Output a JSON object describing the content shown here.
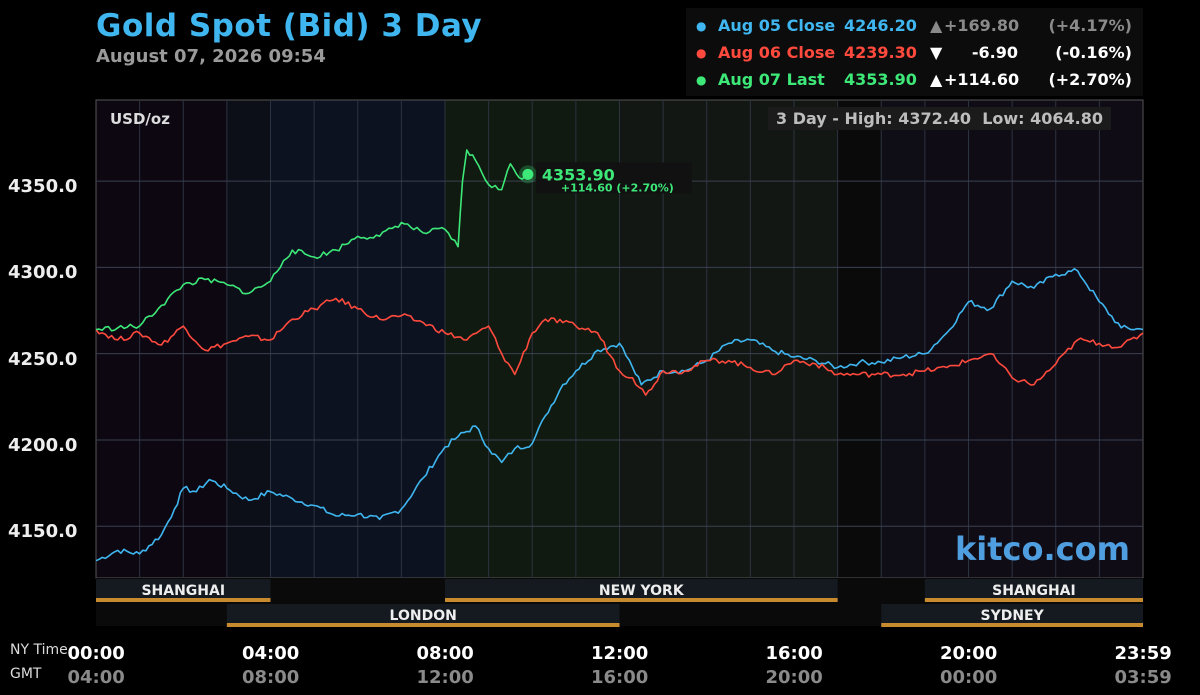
{
  "title": "Gold Spot (Bid) 3 Day",
  "subtitle": "August 07, 2026 09:54",
  "legend": [
    {
      "label": "Aug 05 Close",
      "value": "4246.20",
      "arrow": "▲",
      "change": "+169.80",
      "pct": "(+4.17%)",
      "color": "#3fb6f0",
      "chg_color": "#8a8a8a"
    },
    {
      "label": "Aug 06 Close",
      "value": "4239.30",
      "arrow": "▼",
      "change": "-6.90",
      "pct": "(-0.16%)",
      "color": "#ff4a3d",
      "chg_color": "#ffffff"
    },
    {
      "label": "Aug 07 Last",
      "value": "4353.90",
      "arrow": "▲",
      "change": "+114.60",
      "pct": "(+2.70%)",
      "color": "#3de879",
      "chg_color": "#ffffff"
    }
  ],
  "unit_label": "USD/oz",
  "hilo_text": "3 Day - High: 4372.40  Low: 4064.80",
  "watermark": "kitco.com",
  "last_marker": {
    "value": "4353.90",
    "change": "+114.60 (+2.70%)"
  },
  "tz_labels": {
    "ny": "NY Time",
    "gmt": "GMT"
  },
  "sessions": {
    "top": [
      {
        "name": "SHANGHAI",
        "start": 0,
        "end": 4
      },
      {
        "name": "NEW YORK",
        "start": 8,
        "end": 17
      },
      {
        "name": "SHANGHAI",
        "start": 19,
        "end": 24
      }
    ],
    "bottom": [
      {
        "name": "LONDON",
        "start": 3,
        "end": 12
      },
      {
        "name": "SYDNEY",
        "start": 18,
        "end": 24
      }
    ]
  },
  "colors": {
    "aug05": "#3fb6f0",
    "aug06": "#ff4a3d",
    "aug07": "#3de879",
    "session_bar": "#c88a2e"
  },
  "chart_data": {
    "type": "line",
    "title": "Gold Spot (Bid) 3 Day",
    "ylabel": "USD/oz",
    "xlabel": "",
    "ylim": [
      4120,
      4400
    ],
    "xlim": [
      0,
      24
    ],
    "y_ticks": [
      4150.0,
      4200.0,
      4250.0,
      4300.0,
      4350.0
    ],
    "y_tick_labels": [
      "4150.0",
      "4200.0",
      "4250.0",
      "4300.0",
      "4350.0"
    ],
    "x_ticks": [
      0,
      4,
      8,
      12,
      16,
      20,
      24
    ],
    "x_tick_labels_ny": [
      "00:00",
      "04:00",
      "08:00",
      "12:00",
      "16:00",
      "20:00",
      "23:59"
    ],
    "x_tick_labels_gmt": [
      "04:00",
      "08:00",
      "12:00",
      "16:00",
      "20:00",
      "00:00",
      "03:59"
    ],
    "grid": true,
    "legend_position": "top-right",
    "series": [
      {
        "name": "Aug 05 Close",
        "x": [
          0,
          0.5,
          1,
          1.5,
          1.8,
          2,
          2.3,
          2.6,
          3,
          3.5,
          4,
          4.5,
          5,
          5.5,
          6,
          6.5,
          7,
          7.5,
          8,
          8.3,
          8.7,
          9,
          9.3,
          9.6,
          10,
          10.3,
          10.7,
          11,
          11.5,
          12,
          12.3,
          12.5,
          13,
          13.5,
          14,
          14.5,
          15,
          15.5,
          16,
          16.5,
          17,
          17.5,
          18,
          18.5,
          19,
          19.5,
          20,
          20.5,
          21,
          21.5,
          22,
          22.5,
          23,
          23.5,
          24
        ],
        "values": [
          4130,
          4136,
          4134,
          4145,
          4160,
          4172,
          4170,
          4177,
          4172,
          4165,
          4170,
          4166,
          4162,
          4156,
          4157,
          4154,
          4160,
          4178,
          4196,
          4202,
          4208,
          4195,
          4187,
          4195,
          4198,
          4214,
          4232,
          4240,
          4252,
          4256,
          4242,
          4232,
          4240,
          4240,
          4246,
          4256,
          4258,
          4252,
          4248,
          4246,
          4242,
          4245,
          4245,
          4248,
          4250,
          4262,
          4280,
          4276,
          4292,
          4288,
          4296,
          4298,
          4280,
          4265,
          4264
        ]
      },
      {
        "name": "Aug 06 Close",
        "x": [
          0,
          0.5,
          1,
          1.5,
          2,
          2.5,
          3,
          3.5,
          4,
          4.5,
          5,
          5.5,
          6,
          6.5,
          7,
          7.5,
          8,
          8.5,
          9,
          9.3,
          9.6,
          10,
          10.3,
          10.7,
          11,
          11.5,
          12,
          12.3,
          12.6,
          13,
          13.5,
          14,
          14.5,
          15,
          15.5,
          16,
          16.5,
          17,
          17.5,
          18,
          18.5,
          19,
          19.5,
          20,
          20.5,
          21,
          21.5,
          22,
          22.5,
          23,
          23.5,
          24
        ],
        "values": [
          4264,
          4258,
          4262,
          4255,
          4266,
          4252,
          4256,
          4260,
          4258,
          4270,
          4276,
          4282,
          4276,
          4270,
          4272,
          4268,
          4262,
          4258,
          4266,
          4250,
          4238,
          4262,
          4270,
          4268,
          4266,
          4262,
          4240,
          4236,
          4226,
          4240,
          4240,
          4246,
          4246,
          4242,
          4238,
          4246,
          4244,
          4238,
          4238,
          4238,
          4238,
          4240,
          4242,
          4246,
          4250,
          4236,
          4232,
          4244,
          4258,
          4256,
          4254,
          4262
        ]
      },
      {
        "name": "Aug 07 Last",
        "x": [
          0,
          0.5,
          1,
          1.5,
          2,
          2.5,
          3,
          3.5,
          4,
          4.3,
          4.5,
          5,
          5.5,
          6,
          6.5,
          7,
          7.5,
          8,
          8.3,
          8.4,
          8.5,
          8.7,
          9,
          9.3,
          9.5,
          9.7,
          9.9
        ],
        "values": [
          4264,
          4265,
          4266,
          4278,
          4290,
          4293,
          4290,
          4285,
          4292,
          4304,
          4310,
          4306,
          4310,
          4318,
          4318,
          4326,
          4320,
          4322,
          4312,
          4350,
          4368,
          4362,
          4348,
          4345,
          4360,
          4352,
          4353.9
        ]
      }
    ]
  }
}
